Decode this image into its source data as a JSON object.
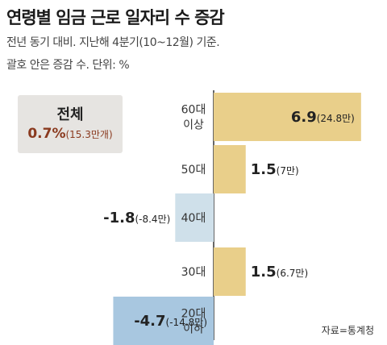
{
  "title": "연령별 임금 근로 일자리 수 증감",
  "subtitle_line1": "전년 동기 대비. 지난해 4분기(10~12월) 기준.",
  "subtitle_line2": "괄호 안은 증감 수. 단위: %",
  "total": {
    "label": "전체",
    "value": "0.7%",
    "count": "(15.3만개)"
  },
  "source": "자료=통계청",
  "colors": {
    "positive": "#e9cf8a",
    "negative_light": "#cfe0ea",
    "negative_dark": "#a8c7e0",
    "axis": "#333333",
    "total_box": "#e6e4e1",
    "total_text": "#8a3a1f"
  },
  "chart_data": {
    "type": "bar",
    "orientation": "horizontal",
    "categories": [
      "60대 이상",
      "50대",
      "40대",
      "30대",
      "20대 이하"
    ],
    "category_lines": [
      [
        "60대",
        "이상"
      ],
      [
        "50대"
      ],
      [
        "40대"
      ],
      [
        "30대"
      ],
      [
        "20대",
        "이하"
      ]
    ],
    "values": [
      6.9,
      1.5,
      -1.8,
      1.5,
      -4.7
    ],
    "value_labels": [
      "6.9",
      "1.5",
      "-1.8",
      "1.5",
      "-4.7"
    ],
    "count_labels": [
      "(24.8만)",
      "(7만)",
      "(-8.4만)",
      "(6.7만)",
      "(-14.8만)"
    ],
    "unit": "%"
  }
}
